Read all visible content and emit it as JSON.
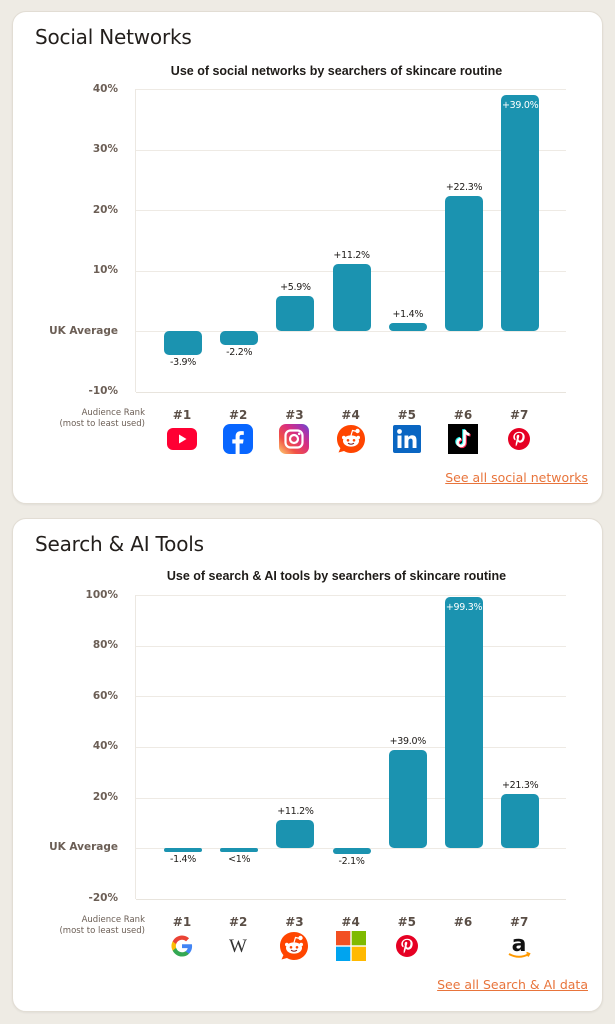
{
  "social": {
    "title": "Social Networks",
    "chart_title": "Use of social networks by searchers of skincare routine",
    "rank_caption_line1": "Audience Rank",
    "rank_caption_line2": "(most to least used)",
    "yticks": [
      "40%",
      "30%",
      "20%",
      "10%",
      "UK Average",
      "-10%"
    ],
    "bars": [
      {
        "rank": "#1",
        "label": "-3.9%",
        "value": -3.9,
        "icon": "youtube-icon"
      },
      {
        "rank": "#2",
        "label": "-2.2%",
        "value": -2.2,
        "icon": "facebook-icon"
      },
      {
        "rank": "#3",
        "label": "+5.9%",
        "value": 5.9,
        "icon": "instagram-icon"
      },
      {
        "rank": "#4",
        "label": "+11.2%",
        "value": 11.2,
        "icon": "reddit-icon"
      },
      {
        "rank": "#5",
        "label": "+1.4%",
        "value": 1.4,
        "icon": "linkedin-icon"
      },
      {
        "rank": "#6",
        "label": "+22.3%",
        "value": 22.3,
        "icon": "tiktok-icon"
      },
      {
        "rank": "#7",
        "label": "+39.0%",
        "value": 39.0,
        "icon": "pinterest-icon"
      }
    ],
    "link": "See all social networks"
  },
  "search": {
    "title": "Search & AI Tools",
    "chart_title": "Use of search & AI tools by searchers of skincare routine",
    "rank_caption_line1": "Audience Rank",
    "rank_caption_line2": "(most to least used)",
    "yticks": [
      "100%",
      "80%",
      "60%",
      "40%",
      "20%",
      "UK Average",
      "-20%"
    ],
    "bars": [
      {
        "rank": "#1",
        "label": "-1.4%",
        "value": -1.4,
        "icon": "google-icon"
      },
      {
        "rank": "#2",
        "label": "<1%",
        "value": -0.5,
        "icon": "wikipedia-icon"
      },
      {
        "rank": "#3",
        "label": "+11.2%",
        "value": 11.2,
        "icon": "reddit-icon"
      },
      {
        "rank": "#4",
        "label": "-2.1%",
        "value": -2.1,
        "icon": "microsoft-icon"
      },
      {
        "rank": "#5",
        "label": "+39.0%",
        "value": 39.0,
        "icon": "pinterest-icon"
      },
      {
        "rank": "#6",
        "label": "+99.3%",
        "value": 99.3,
        "icon": ""
      },
      {
        "rank": "#7",
        "label": "+21.3%",
        "value": 21.3,
        "icon": "amazon-icon"
      }
    ],
    "link": "See all Search & AI data"
  },
  "colors": {
    "bar": "#1B93B0",
    "link": "#E8743B",
    "axis_label": "#6B5E55",
    "background": "#EEEBE4"
  },
  "chart_data": [
    {
      "type": "bar",
      "title": "Use of social networks by searchers of skincare routine",
      "xlabel": "Audience Rank (most to least used)",
      "ylabel": "",
      "categories": [
        "#1 YouTube",
        "#2 Facebook",
        "#3 Instagram",
        "#4 Reddit",
        "#5 LinkedIn",
        "#6 TikTok",
        "#7 Pinterest"
      ],
      "values": [
        -3.9,
        -2.2,
        5.9,
        11.2,
        1.4,
        22.3,
        39.0
      ],
      "data_labels": [
        "-3.9%",
        "-2.2%",
        "+5.9%",
        "+11.2%",
        "+1.4%",
        "+22.3%",
        "+39.0%"
      ],
      "ylim": [
        -10,
        40
      ],
      "yticks": [
        -10,
        0,
        10,
        20,
        30,
        40
      ],
      "ytick_labels": [
        "-10%",
        "UK Average",
        "10%",
        "20%",
        "30%",
        "40%"
      ],
      "grid": true,
      "legend": null
    },
    {
      "type": "bar",
      "title": "Use of search & AI tools by searchers of skincare routine",
      "xlabel": "Audience Rank (most to least used)",
      "ylabel": "",
      "categories": [
        "#1 Google",
        "#2 Wikipedia",
        "#3 Reddit",
        "#4 Microsoft",
        "#5 Pinterest",
        "#6",
        "#7 Amazon"
      ],
      "values": [
        -1.4,
        -0.5,
        11.2,
        -2.1,
        39.0,
        99.3,
        21.3
      ],
      "data_labels": [
        "-1.4%",
        "<1%",
        "+11.2%",
        "-2.1%",
        "+39.0%",
        "+99.3%",
        "+21.3%"
      ],
      "ylim": [
        -20,
        100
      ],
      "yticks": [
        -20,
        0,
        20,
        40,
        60,
        80,
        100
      ],
      "ytick_labels": [
        "-20%",
        "UK Average",
        "20%",
        "40%",
        "60%",
        "80%",
        "100%"
      ],
      "grid": true,
      "legend": null
    }
  ]
}
